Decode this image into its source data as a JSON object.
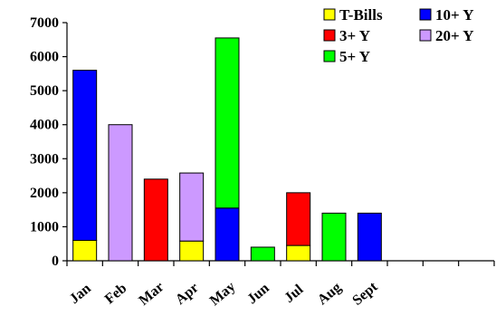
{
  "chart_data": {
    "type": "bar",
    "stacked": true,
    "categories": [
      "Jan",
      "Feb",
      "Mar",
      "Apr",
      "May",
      "Jun",
      "Jul",
      "Aug",
      "Sept",
      "",
      "",
      ""
    ],
    "ylim": [
      0,
      7000
    ],
    "yticks": [
      "0",
      "1000",
      "2000",
      "3000",
      "4000",
      "5000",
      "6000",
      "7000"
    ],
    "grid": false,
    "legend_position": "top-right",
    "series": [
      {
        "name": "T-Bills",
        "color": "#ffff00",
        "values": [
          600,
          0,
          0,
          580,
          0,
          0,
          450,
          0,
          0,
          0,
          0,
          0
        ]
      },
      {
        "name": "3+ Y",
        "color": "#ff0000",
        "values": [
          0,
          0,
          2400,
          0,
          0,
          0,
          1550,
          0,
          0,
          0,
          0,
          0
        ]
      },
      {
        "name": "5+ Y",
        "color": "#00ff00",
        "values": [
          0,
          0,
          0,
          0,
          5000,
          400,
          0,
          1400,
          0,
          0,
          0,
          0
        ]
      },
      {
        "name": "10+ Y",
        "color": "#0000ff",
        "values": [
          5000,
          0,
          0,
          0,
          1550,
          0,
          0,
          0,
          1400,
          0,
          0,
          0
        ]
      },
      {
        "name": "20+ Y",
        "color": "#cc99ff",
        "values": [
          0,
          4000,
          0,
          2000,
          0,
          0,
          0,
          0,
          0,
          0,
          0,
          0
        ]
      }
    ],
    "stack_order": [
      [
        "T-Bills",
        "10+ Y"
      ],
      [
        "20+ Y"
      ],
      [
        "3+ Y"
      ],
      [
        "T-Bills",
        "20+ Y"
      ],
      [
        "10+ Y",
        "5+ Y"
      ],
      [
        "5+ Y"
      ],
      [
        "T-Bills",
        "3+ Y"
      ],
      [
        "5+ Y"
      ],
      [
        "10+ Y"
      ],
      [],
      [],
      []
    ]
  },
  "legend": {
    "items": [
      {
        "label": "T-Bills",
        "color": "#ffff00"
      },
      {
        "label": "10+ Y",
        "color": "#0000ff"
      },
      {
        "label": "3+ Y",
        "color": "#ff0000"
      },
      {
        "label": "20+ Y",
        "color": "#cc99ff"
      },
      {
        "label": "5+ Y",
        "color": "#00ff00"
      }
    ]
  }
}
